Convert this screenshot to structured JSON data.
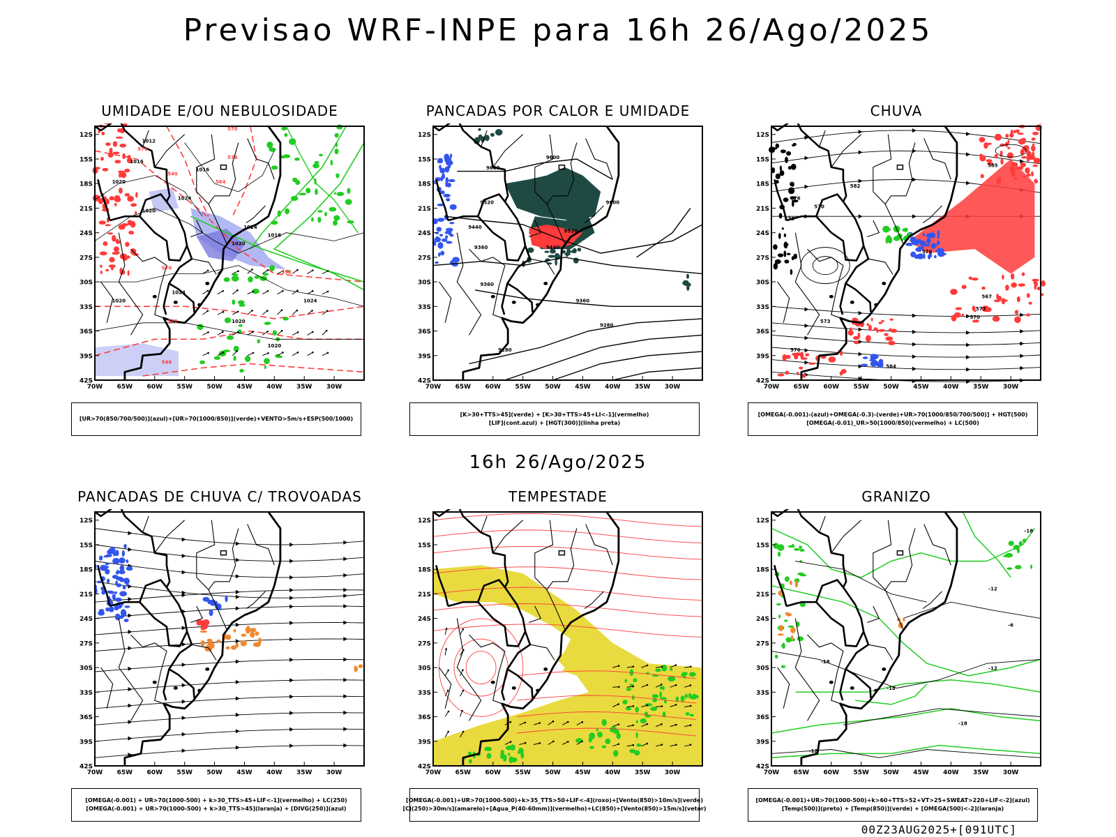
{
  "header": {
    "title": "Previsao WRF-INPE  para 16h 26/Ago/2025",
    "subtitle": "16h 26/Ago/2025",
    "footer": "00Z23AUG2025+[091UTC]"
  },
  "axes": {
    "lat_labels": [
      "12S",
      "15S",
      "18S",
      "21S",
      "24S",
      "27S",
      "30S",
      "33S",
      "36S",
      "39S",
      "42S"
    ],
    "lon_labels": [
      "70W",
      "65W",
      "60W",
      "55W",
      "50W",
      "45W",
      "40W",
      "35W",
      "30W"
    ]
  },
  "colors": {
    "background": "#ffffff",
    "border": "#000000",
    "red": "#ff3b3b",
    "green": "#22cc22",
    "blue": "#3355ee",
    "lavender": "#aab0f0",
    "darkgreen": "#1f4a44",
    "yellow": "#e8d835",
    "orange": "#f08830"
  },
  "panels": [
    {
      "id": "umidade",
      "title": "UMIDADE E/OU NEBULOSIDADE",
      "legend": [
        "[UR>70(850/700/500)](azul)+[UR>70(1000/850)](verde)+VENTO>5m/s+ESP(500/1000)"
      ],
      "contour_labels": [
        "1012",
        "1016",
        "1016",
        "1020",
        "1020",
        "1024",
        "1024",
        "1020",
        "1016",
        "1024",
        "1020",
        "1020",
        "1024",
        "1020",
        "576",
        "570",
        "564",
        "558",
        "552",
        "546",
        "540",
        "570",
        "576"
      ]
    },
    {
      "id": "pancadas-calor",
      "title": "PANCADAS POR CALOR E UMIDADE",
      "legend": [
        "[K>30+TTS>45](verde) + [K>30+TTS>45+LI<-1](vermelho)",
        "[LIF](cont.azul) + [HGT(300)](linha preta)"
      ],
      "contour_labels": [
        "9600",
        "9600",
        "9520",
        "9440",
        "9360",
        "9520",
        "9440",
        "9600",
        "9360",
        "9360",
        "9280",
        "9280"
      ]
    },
    {
      "id": "chuva",
      "title": "CHUVA",
      "legend": [
        "[OMEGA(-0.001)-(azul)+OMEGA(-0.3)-(verde)+UR>70(1000/850/700/500)] + HGT(500)",
        "[OMEGA(-0.01)_UR>50(1000/850)(vermelho) + LC(500)"
      ],
      "contour_labels": [
        "582",
        "576",
        "570",
        "576",
        "576",
        "573",
        "570",
        "567",
        "573",
        "570",
        "564",
        "585"
      ]
    },
    {
      "id": "trovoadas",
      "title": "PANCADAS DE CHUVA C/ TROVOADAS",
      "legend": [
        "[OMEGA(-0.001) + UR>70(1000-500) + k>30_TTS>45+LIF<-1](vermelho) + LC(250)",
        "[OMEGA(-0.001) + UR>70(1000-500) + k>30_TTS>45](laranja) + [DIVG(250)](azul)"
      ],
      "contour_labels": []
    },
    {
      "id": "tempestade",
      "title": "TEMPESTADE",
      "legend": [
        "[OMEGA(-0.001)+UR>70(1000-500)+k>35_TTS>50+LIF<-4](roxo)+[Vento(850)>10m/s](verde)",
        "[CJ(250)>30m/s](amarelo)+[Agua_P(40-60mm)](vermelho)+LC(850)+[Vento(850)>15m/s](vetor)"
      ],
      "contour_labels": []
    },
    {
      "id": "granizo",
      "title": "GRANIZO",
      "legend": [
        "[OMEGA(-0.001)+UR>70(1000-500)+k>60+TTS>52+VT>25+SWEAT>220+LIF<-2](azul)",
        "[Temp(500)](preto) + [Temp(850)](verde) + [OMEGA(500)<-2](laranja)"
      ],
      "contour_labels": [
        "-6",
        "-12",
        "-18",
        "-18",
        "-12",
        "-18",
        "-12",
        "-18"
      ]
    }
  ]
}
